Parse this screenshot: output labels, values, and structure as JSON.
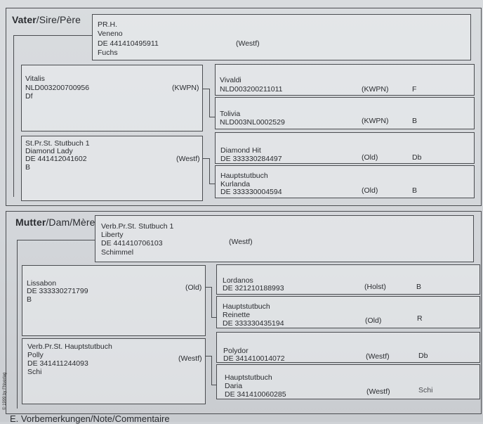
{
  "sire_section": {
    "heading_bold": "Vater",
    "heading_rest": "/Sire/Père",
    "sire": {
      "l1": "PR.H.",
      "l2": "Veneno",
      "l3": "DE 441410495911",
      "l4": "Fuchs",
      "breed": "(Westf)"
    },
    "gp1": {
      "l1": "Vitalis",
      "l2": "NLD003200700956",
      "l3": "Df",
      "breed": "(KWPN)"
    },
    "ggp1": {
      "l1": "Vivaldi",
      "l2": "NLD003200211011",
      "breed": "(KWPN)",
      "color": "F"
    },
    "ggp2": {
      "l1": "Tolivia",
      "l2": "NLD003NL0002529",
      "breed": "(KWPN)",
      "color": "B"
    },
    "gp2": {
      "l1": "St.Pr.St.  Stutbuch 1",
      "l2": "Diamond Lady",
      "l3": "DE 441412041602",
      "l4": "B",
      "breed": "(Westf)"
    },
    "ggp3": {
      "l1": "Diamond Hit",
      "l2": "DE 333330284497",
      "breed": "(Old)",
      "color": "Db"
    },
    "ggp4": {
      "l1": "Hauptstutbuch",
      "l2": "Kurlanda",
      "l3": "DE 333330004594",
      "breed": "(Old)",
      "color": "B"
    }
  },
  "dam_section": {
    "heading_bold": "Mutter",
    "heading_rest": "/Dam/Mère",
    "dam": {
      "l1": "Verb.Pr.St.  Stutbuch 1",
      "l2": "Liberty",
      "l3": "DE 441410706103",
      "l4": "Schimmel",
      "breed": "(Westf)"
    },
    "gp1": {
      "l1": "Lissabon",
      "l2": "DE 333330271799",
      "l3": "B",
      "breed": "(Old)"
    },
    "ggp1": {
      "l1": "Lordanos",
      "l2": "DE 321210188993",
      "breed": "(Holst)",
      "color": "B"
    },
    "ggp2": {
      "l1": "Hauptstutbuch",
      "l2": "Reinette",
      "l3": "DE 333330435194",
      "breed": "(Old)",
      "color": "R"
    },
    "gp2": {
      "l1": "Verb.Pr.St.  Hauptstutbuch",
      "l2": "Polly",
      "l3": "DE 341411244093",
      "l4": "Schi",
      "breed": "(Westf)"
    },
    "ggp3": {
      "l1": "Polydor",
      "l2": "DE 341410014072",
      "breed": "(Westf)",
      "color": "Db"
    },
    "ggp4": {
      "l1": "Hauptstutbuch",
      "l2": "Daria",
      "l3": "DE 341410060285",
      "breed": "(Westf)",
      "color": "Schi"
    }
  },
  "copyright": "© 1999 by FNverlag",
  "footer": "E. Vorbemerkungen/Note/Commentaire"
}
